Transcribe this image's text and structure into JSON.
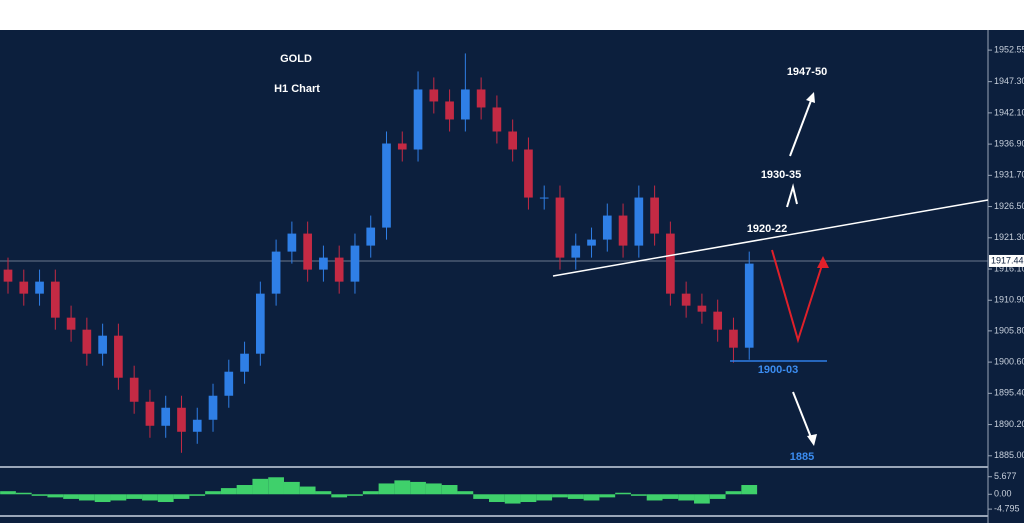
{
  "chart_data": {
    "type": "candlestick",
    "title": "GOLD",
    "subtitle": "H1 Chart",
    "annotations": [
      "1947-50",
      "1930-35",
      "1920-22",
      "1900-03",
      "1885"
    ],
    "current_price": 1917.44,
    "open": [
      1916,
      1914,
      1912,
      1914,
      1908,
      1906,
      1902,
      1905,
      1898,
      1894,
      1890,
      1893,
      1889,
      1891,
      1895,
      1899,
      1902,
      1912,
      1919,
      1922,
      1916,
      1918,
      1914,
      1920,
      1923,
      1937,
      1936,
      1946,
      1944,
      1941,
      1946,
      1943,
      1939,
      1936,
      1928,
      1928,
      1918,
      1920,
      1921,
      1925,
      1920,
      1928,
      1922,
      1912,
      1910,
      1909,
      1906,
      1903
    ],
    "high": [
      1918,
      1916,
      1916,
      1916,
      1910,
      1908,
      1907,
      1907,
      1900,
      1896,
      1895,
      1895,
      1893,
      1897,
      1901,
      1904,
      1914,
      1921,
      1924,
      1924,
      1920,
      1920,
      1922,
      1925,
      1939,
      1939,
      1949,
      1948,
      1946,
      1952,
      1948,
      1945,
      1941,
      1938,
      1930,
      1930,
      1922,
      1923,
      1927,
      1927,
      1930,
      1930,
      1924,
      1914,
      1912,
      1911,
      1908,
      1919
    ],
    "low": [
      1912,
      1910,
      1910,
      1906,
      1904,
      1900,
      1900,
      1896,
      1892,
      1888,
      1888,
      1885.5,
      1887,
      1889,
      1893,
      1897,
      1900,
      1910,
      1917,
      1914,
      1914,
      1912,
      1912,
      1918,
      1921,
      1934,
      1934,
      1942,
      1939,
      1939,
      1941,
      1937,
      1934,
      1926,
      1926,
      1916,
      1916,
      1918,
      1919,
      1918,
      1918,
      1920,
      1910,
      1908,
      1907,
      1904,
      1900.5,
      1901
    ],
    "close": [
      1914,
      1912,
      1914,
      1908,
      1906,
      1902,
      1905,
      1898,
      1894,
      1890,
      1893,
      1889,
      1891,
      1895,
      1899,
      1902,
      1912,
      1919,
      1922,
      1916,
      1918,
      1914,
      1920,
      1923,
      1937,
      1936,
      1946,
      1944,
      1941,
      1946,
      1943,
      1939,
      1936,
      1928,
      1928,
      1918,
      1920,
      1921,
      1925,
      1920,
      1928,
      1922,
      1912,
      1910,
      1909,
      1906,
      1903,
      1917
    ],
    "up_color": "#2f7fe6",
    "down_color": "#c42a44",
    "ylim": [
      1883.3,
      1955.9
    ],
    "yticks": [
      1952.55,
      {
        "value": 1947.3,
        "label": "1947.30"
      },
      {
        "value": 1942.1,
        "label": "1942.10"
      },
      {
        "value": 1936.9,
        "label": "1936.90"
      },
      {
        "value": 1931.7,
        "label": "1931.70"
      },
      {
        "value": 1926.5,
        "label": "1926.50"
      },
      {
        "value": 1921.3,
        "label": "1921.30"
      },
      {
        "value": 1916.1,
        "label": "1916.10"
      },
      {
        "value": 1910.9,
        "label": "1910.90"
      },
      {
        "value": 1905.8,
        "label": "1905.80"
      },
      {
        "value": 1900.6,
        "label": "1900.60"
      },
      {
        "value": 1895.4,
        "label": "1895.40"
      },
      {
        "value": 1890.2,
        "label": "1890.20"
      },
      {
        "value": 1885,
        "label": "1885.00"
      }
    ],
    "oscillator": {
      "color": "#3fd06b",
      "values": [
        1,
        0.5,
        -0.5,
        -1,
        -1.5,
        -2,
        -2.5,
        -2,
        -1.5,
        -2,
        -2.5,
        -1.5,
        -0.5,
        1,
        2,
        3,
        5,
        5.5,
        4,
        2.5,
        1,
        -1,
        -0.5,
        1,
        3.5,
        4.5,
        4,
        3.5,
        3,
        1,
        -1.5,
        -2.5,
        -3,
        -2.5,
        -2,
        -1,
        -1.5,
        -2,
        -1,
        0.5,
        -0.5,
        -2,
        -1.5,
        -2,
        -3,
        -1.5,
        1,
        3
      ],
      "ylim": [
        -6.7,
        8.5
      ],
      "yticks": [
        5.677,
        {
          "value": 0,
          "label": "0.00"
        },
        -4.795
      ]
    }
  }
}
